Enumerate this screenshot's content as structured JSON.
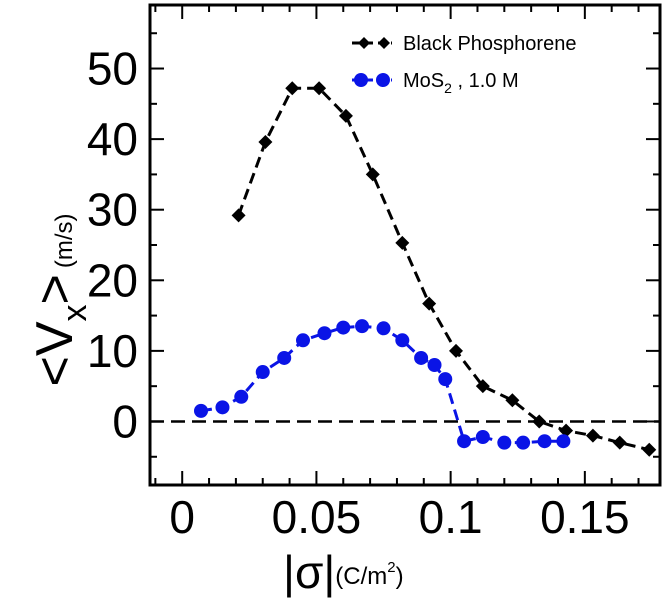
{
  "chart_data": {
    "type": "line",
    "title": "",
    "xlabel": {
      "main": "|σ|",
      "unit_open": "(C/m",
      "unit_sup": "2",
      "unit_close": ")"
    },
    "ylabel": {
      "pre": "<V",
      "sub": "x",
      "post": ">",
      "unit": "(m/s)"
    },
    "xlim": [
      -0.012,
      0.178
    ],
    "ylim": [
      -9,
      59
    ],
    "xticks": [
      0,
      0.05,
      0.1,
      0.15
    ],
    "xtick_labels": [
      "0",
      "0.05",
      "0.1",
      "0.15"
    ],
    "yticks": [
      0,
      10,
      20,
      30,
      40,
      50
    ],
    "ytick_labels": [
      "0",
      "10",
      "20",
      "30",
      "40",
      "50"
    ],
    "reference_line": {
      "y": 0,
      "style": "dashed"
    },
    "legend_position": "top-right",
    "series": [
      {
        "name": "Black Phosphorene",
        "color": "#000000",
        "marker": "diamond",
        "x": [
          0.021,
          0.031,
          0.041,
          0.051,
          0.061,
          0.071,
          0.082,
          0.092,
          0.102,
          0.112,
          0.123,
          0.133,
          0.143,
          0.153,
          0.163,
          0.174
        ],
        "y": [
          29.2,
          39.6,
          47.2,
          47.2,
          43.3,
          35.0,
          25.3,
          16.7,
          10.0,
          5.0,
          3.0,
          0.0,
          -1.3,
          -2.0,
          -3.0,
          -4.0
        ]
      },
      {
        "name": "MoS₂ , 1.0 M",
        "name_parts": {
          "base": "MoS",
          "sub": "2",
          "rest": " , 1.0 M"
        },
        "color": "#0a14e6",
        "marker": "circle",
        "x": [
          0.007,
          0.015,
          0.022,
          0.03,
          0.038,
          0.045,
          0.053,
          0.06,
          0.067,
          0.075,
          0.082,
          0.089,
          0.094,
          0.098,
          0.105,
          0.112,
          0.12,
          0.127,
          0.135,
          0.142
        ],
        "y": [
          1.5,
          2.0,
          3.5,
          7.0,
          9.0,
          11.5,
          12.5,
          13.3,
          13.5,
          13.2,
          11.5,
          9.0,
          8.0,
          6.0,
          -2.8,
          -2.2,
          -3.0,
          -3.0,
          -2.8,
          -2.8
        ]
      }
    ]
  }
}
